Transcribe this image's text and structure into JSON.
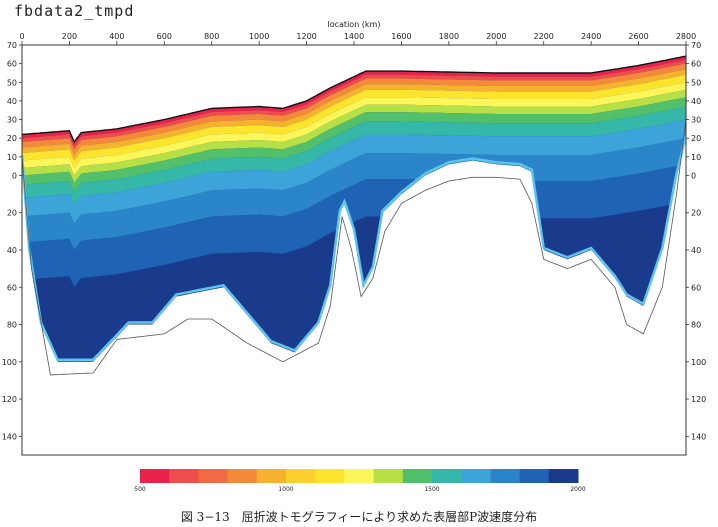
{
  "figure": {
    "title": "fbdata2_tmpd",
    "caption": "図 3−13　屈折波トモグラフィーにより求めた表層部P波速度分布"
  },
  "chart_data": {
    "type": "heatmap",
    "title": "fbdata2_tmpd",
    "xlabel": "location (km)",
    "ylabel": "",
    "xlim": [
      0,
      2800
    ],
    "ylim": [
      -150,
      70
    ],
    "x_ticks": [
      0,
      200,
      400,
      600,
      800,
      1000,
      1200,
      1400,
      1600,
      1800,
      2000,
      2200,
      2400,
      2600,
      2800
    ],
    "y_ticks": [
      70,
      60,
      50,
      40,
      30,
      20,
      10,
      0,
      -20,
      -40,
      -60,
      -80,
      -100,
      -120,
      -140
    ],
    "y_tick_labels": [
      "70",
      "60",
      "50",
      "40",
      "30",
      "20",
      "10",
      "0",
      "20",
      "40",
      "60",
      "80",
      "100",
      "120",
      "140"
    ],
    "surface": [
      [
        0,
        22
      ],
      [
        100,
        23
      ],
      [
        200,
        24
      ],
      [
        220,
        18
      ],
      [
        250,
        23
      ],
      [
        400,
        25
      ],
      [
        600,
        30
      ],
      [
        800,
        36
      ],
      [
        1000,
        37
      ],
      [
        1100,
        36
      ],
      [
        1200,
        40
      ],
      [
        1300,
        47
      ],
      [
        1400,
        53
      ],
      [
        1450,
        56
      ],
      [
        1600,
        56
      ],
      [
        2000,
        55
      ],
      [
        2400,
        55
      ],
      [
        2600,
        59
      ],
      [
        2800,
        64
      ]
    ],
    "velocity_classes": [
      {
        "layer": 0,
        "thickness": 2,
        "color": "#e8224a"
      },
      {
        "layer": 1,
        "thickness": 2,
        "color": "#ef4d4d"
      },
      {
        "layer": 2,
        "thickness": 3,
        "color": "#f28a3a"
      },
      {
        "layer": 3,
        "thickness": 3,
        "color": "#f6b22f"
      },
      {
        "layer": 4,
        "thickness": 4,
        "color": "#fde52e"
      },
      {
        "layer": 5,
        "thickness": 4,
        "color": "#fcf65a"
      },
      {
        "layer": 6,
        "thickness": 4,
        "color": "#b6e046"
      },
      {
        "layer": 7,
        "thickness": 5,
        "color": "#52c06a"
      },
      {
        "layer": 8,
        "thickness": 7,
        "color": "#35b8a8"
      },
      {
        "layer": 9,
        "thickness": 10,
        "color": "#3ca4d8"
      },
      {
        "layer": 10,
        "thickness": 14,
        "color": "#2a86c8"
      },
      {
        "layer": 11,
        "thickness": 20,
        "color": "#1f63b4"
      }
    ],
    "deep_fill_color": "#1a3a8c",
    "base_of_model": [
      [
        0,
        10
      ],
      [
        30,
        -40
      ],
      [
        80,
        -80
      ],
      [
        150,
        -100
      ],
      [
        300,
        -100
      ],
      [
        450,
        -80
      ],
      [
        550,
        -80
      ],
      [
        650,
        -65
      ],
      [
        850,
        -60
      ],
      [
        950,
        -75
      ],
      [
        1050,
        -90
      ],
      [
        1150,
        -95
      ],
      [
        1250,
        -80
      ],
      [
        1300,
        -60
      ],
      [
        1340,
        -20
      ],
      [
        1360,
        -15
      ],
      [
        1400,
        -30
      ],
      [
        1440,
        -60
      ],
      [
        1480,
        -50
      ],
      [
        1520,
        -20
      ],
      [
        1600,
        -10
      ],
      [
        1700,
        0
      ],
      [
        1800,
        6
      ],
      [
        1900,
        8
      ],
      [
        2000,
        6
      ],
      [
        2100,
        5
      ],
      [
        2150,
        2
      ],
      [
        2200,
        -40
      ],
      [
        2300,
        -45
      ],
      [
        2400,
        -40
      ],
      [
        2500,
        -55
      ],
      [
        2550,
        -65
      ],
      [
        2620,
        -70
      ],
      [
        2700,
        -40
      ],
      [
        2760,
        0
      ],
      [
        2800,
        20
      ]
    ],
    "ray_coverage": [
      [
        0,
        10
      ],
      [
        40,
        -50
      ],
      [
        120,
        -107
      ],
      [
        300,
        -106
      ],
      [
        400,
        -88
      ],
      [
        600,
        -85
      ],
      [
        700,
        -77
      ],
      [
        800,
        -77
      ],
      [
        950,
        -90
      ],
      [
        1100,
        -100
      ],
      [
        1250,
        -90
      ],
      [
        1300,
        -70
      ],
      [
        1350,
        -22
      ],
      [
        1390,
        -40
      ],
      [
        1430,
        -65
      ],
      [
        1480,
        -55
      ],
      [
        1530,
        -30
      ],
      [
        1600,
        -15
      ],
      [
        1700,
        -8
      ],
      [
        1800,
        -3
      ],
      [
        1900,
        -1
      ],
      [
        2000,
        -1
      ],
      [
        2100,
        -2
      ],
      [
        2150,
        -15
      ],
      [
        2200,
        -45
      ],
      [
        2300,
        -50
      ],
      [
        2400,
        -45
      ],
      [
        2500,
        -60
      ],
      [
        2550,
        -80
      ],
      [
        2620,
        -85
      ],
      [
        2700,
        -60
      ],
      [
        2760,
        -10
      ],
      [
        2800,
        30
      ]
    ],
    "colorbar": {
      "colors": [
        "#e8224a",
        "#ef4d4d",
        "#f06b44",
        "#f28a3a",
        "#f6b22f",
        "#fbcf2e",
        "#fde52e",
        "#fcf65a",
        "#b6e046",
        "#52c06a",
        "#35b8a8",
        "#3ca4d8",
        "#2a86c8",
        "#1f63b4",
        "#1a3a8c"
      ],
      "tick_labels": [
        "500",
        "1000",
        "1500",
        "2000"
      ],
      "tick_values": [
        500,
        1000,
        1500,
        2000
      ],
      "range": [
        500,
        2000
      ]
    }
  }
}
